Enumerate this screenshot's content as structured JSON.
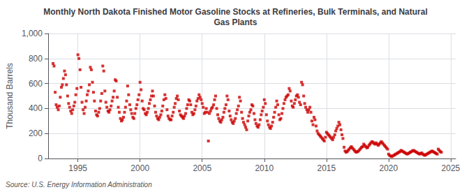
{
  "chart_data": {
    "type": "scatter",
    "title": "Monthly North Dakota Finished Motor Gasoline Stocks at Refineries, Bulk Terminals, and Natural\nGas Plants",
    "ylabel": "Thousand Barrels",
    "annotations": [
      "Source: U.S. Energy Information Administration"
    ],
    "color": "#cc0000",
    "marker": "square",
    "grid": true,
    "xlim": [
      1992.6,
      2025.4
    ],
    "xticks": [
      1995,
      2000,
      2005,
      2010,
      2015,
      2020,
      2025
    ],
    "ylim": [
      0,
      1000
    ],
    "yticks": [
      0,
      200,
      400,
      600,
      800,
      {
        "value": 1000,
        "label": "1,000"
      }
    ],
    "x": [
      1993.0,
      1993.08,
      1993.17,
      1993.25,
      1993.33,
      1993.42,
      1993.5,
      1993.58,
      1993.67,
      1993.75,
      1993.83,
      1993.92,
      1994.0,
      1994.08,
      1994.17,
      1994.25,
      1994.33,
      1994.42,
      1994.5,
      1994.58,
      1994.67,
      1994.75,
      1994.83,
      1994.92,
      1995.0,
      1995.08,
      1995.17,
      1995.25,
      1995.33,
      1995.42,
      1995.5,
      1995.58,
      1995.67,
      1995.75,
      1995.83,
      1995.92,
      1996.0,
      1996.08,
      1996.17,
      1996.25,
      1996.33,
      1996.42,
      1996.5,
      1996.58,
      1996.67,
      1996.75,
      1996.83,
      1996.92,
      1997.0,
      1997.08,
      1997.17,
      1997.25,
      1997.33,
      1997.42,
      1997.5,
      1997.58,
      1997.67,
      1997.75,
      1997.83,
      1997.92,
      1998.0,
      1998.08,
      1998.17,
      1998.25,
      1998.33,
      1998.42,
      1998.5,
      1998.58,
      1998.67,
      1998.75,
      1998.83,
      1998.92,
      1999.0,
      1999.08,
      1999.17,
      1999.25,
      1999.33,
      1999.42,
      1999.5,
      1999.58,
      1999.67,
      1999.75,
      1999.83,
      1999.92,
      2000.0,
      2000.08,
      2000.17,
      2000.25,
      2000.33,
      2000.42,
      2000.5,
      2000.58,
      2000.67,
      2000.75,
      2000.83,
      2000.92,
      2001.0,
      2001.08,
      2001.17,
      2001.25,
      2001.33,
      2001.42,
      2001.5,
      2001.58,
      2001.67,
      2001.75,
      2001.83,
      2001.92,
      2002.0,
      2002.08,
      2002.17,
      2002.25,
      2002.33,
      2002.42,
      2002.5,
      2002.58,
      2002.67,
      2002.75,
      2002.83,
      2002.92,
      2003.0,
      2003.08,
      2003.17,
      2003.25,
      2003.33,
      2003.42,
      2003.5,
      2003.58,
      2003.67,
      2003.75,
      2003.83,
      2003.92,
      2004.0,
      2004.08,
      2004.17,
      2004.25,
      2004.33,
      2004.42,
      2004.5,
      2004.58,
      2004.67,
      2004.75,
      2004.83,
      2004.92,
      2005.0,
      2005.08,
      2005.17,
      2005.25,
      2005.33,
      2005.42,
      2005.5,
      2005.58,
      2005.67,
      2005.75,
      2005.83,
      2005.92,
      2006.0,
      2006.08,
      2006.17,
      2006.25,
      2006.33,
      2006.42,
      2006.5,
      2006.58,
      2006.67,
      2006.75,
      2006.83,
      2006.92,
      2007.0,
      2007.08,
      2007.17,
      2007.25,
      2007.33,
      2007.42,
      2007.5,
      2007.58,
      2007.67,
      2007.75,
      2007.83,
      2007.92,
      2008.0,
      2008.08,
      2008.17,
      2008.25,
      2008.33,
      2008.42,
      2008.5,
      2008.58,
      2008.67,
      2008.75,
      2008.83,
      2008.92,
      2009.0,
      2009.08,
      2009.17,
      2009.25,
      2009.33,
      2009.42,
      2009.5,
      2009.58,
      2009.67,
      2009.75,
      2009.83,
      2009.92,
      2010.0,
      2010.08,
      2010.17,
      2010.25,
      2010.33,
      2010.42,
      2010.5,
      2010.58,
      2010.67,
      2010.75,
      2010.83,
      2010.92,
      2011.0,
      2011.08,
      2011.17,
      2011.25,
      2011.33,
      2011.42,
      2011.5,
      2011.58,
      2011.67,
      2011.75,
      2011.83,
      2011.92,
      2012.0,
      2012.08,
      2012.17,
      2012.25,
      2012.33,
      2012.42,
      2012.5,
      2012.58,
      2012.67,
      2012.75,
      2012.83,
      2012.92,
      2013.0,
      2013.08,
      2013.17,
      2013.25,
      2013.33,
      2013.42,
      2013.5,
      2013.58,
      2013.67,
      2013.75,
      2013.83,
      2013.92,
      2014.0,
      2014.08,
      2014.17,
      2014.25,
      2014.33,
      2014.42,
      2014.5,
      2014.58,
      2014.67,
      2014.75,
      2014.83,
      2014.92,
      2015.0,
      2015.08,
      2015.17,
      2015.25,
      2015.33,
      2015.42,
      2015.5,
      2015.58,
      2015.67,
      2015.75,
      2015.83,
      2015.92,
      2016.0,
      2016.08,
      2016.17,
      2016.25,
      2016.33,
      2016.42,
      2016.5,
      2016.58,
      2016.67,
      2016.75,
      2016.83,
      2016.92,
      2017.0,
      2017.08,
      2017.17,
      2017.25,
      2017.33,
      2017.42,
      2017.5,
      2017.58,
      2017.67,
      2017.75,
      2017.83,
      2017.92,
      2018.0,
      2018.08,
      2018.17,
      2018.25,
      2018.33,
      2018.42,
      2018.5,
      2018.58,
      2018.67,
      2018.75,
      2018.83,
      2018.92,
      2019.0,
      2019.08,
      2019.17,
      2019.25,
      2019.33,
      2019.42,
      2019.5,
      2019.58,
      2019.67,
      2019.75,
      2019.83,
      2019.92,
      2020.0,
      2020.08,
      2020.17,
      2020.25,
      2020.33,
      2020.42,
      2020.5,
      2020.58,
      2020.67,
      2020.75,
      2020.83,
      2020.92,
      2021.0,
      2021.08,
      2021.17,
      2021.25,
      2021.33,
      2021.42,
      2021.5,
      2021.58,
      2021.67,
      2021.75,
      2021.83,
      2021.92,
      2022.0,
      2022.08,
      2022.17,
      2022.25,
      2022.33,
      2022.42,
      2022.5,
      2022.58,
      2022.67,
      2022.75,
      2022.83,
      2022.92,
      2023.0,
      2023.08,
      2023.17,
      2023.25,
      2023.33,
      2023.42,
      2023.5,
      2023.58,
      2023.67,
      2023.75,
      2023.83,
      2023.92,
      2024.0,
      2024.08,
      2024.17,
      2024.25
    ],
    "values": [
      760,
      740,
      530,
      430,
      410,
      390,
      420,
      490,
      570,
      590,
      640,
      700,
      670,
      590,
      500,
      440,
      410,
      380,
      360,
      390,
      420,
      450,
      510,
      560,
      830,
      800,
      710,
      570,
      450,
      390,
      360,
      410,
      460,
      510,
      540,
      590,
      730,
      710,
      610,
      530,
      460,
      380,
      350,
      340,
      370,
      400,
      460,
      520,
      740,
      700,
      540,
      450,
      410,
      380,
      370,
      390,
      420,
      460,
      490,
      540,
      630,
      620,
      490,
      410,
      370,
      320,
      300,
      310,
      330,
      370,
      410,
      460,
      580,
      510,
      430,
      390,
      360,
      330,
      320,
      360,
      400,
      430,
      470,
      510,
      610,
      550,
      460,
      400,
      390,
      360,
      350,
      370,
      400,
      440,
      470,
      500,
      540,
      500,
      420,
      370,
      340,
      320,
      310,
      330,
      350,
      380,
      420,
      470,
      510,
      480,
      390,
      340,
      320,
      310,
      310,
      340,
      370,
      410,
      440,
      480,
      500,
      470,
      380,
      350,
      340,
      330,
      320,
      340,
      360,
      400,
      430,
      470,
      460,
      430,
      370,
      350,
      360,
      390,
      420,
      460,
      480,
      510,
      490,
      470,
      440,
      410,
      360,
      370,
      400,
      370,
      140,
      360,
      380,
      400,
      410,
      430,
      470,
      500,
      400,
      350,
      320,
      300,
      290,
      310,
      330,
      370,
      400,
      430,
      500,
      470,
      380,
      340,
      310,
      290,
      280,
      300,
      320,
      360,
      390,
      420,
      490,
      460,
      370,
      320,
      290,
      270,
      250,
      230,
      300,
      340,
      370,
      390,
      430,
      420,
      360,
      310,
      280,
      260,
      250,
      270,
      310,
      350,
      380,
      410,
      470,
      440,
      350,
      300,
      270,
      250,
      240,
      260,
      290,
      330,
      370,
      410,
      460,
      430,
      350,
      310,
      320,
      360,
      400,
      440,
      470,
      490,
      500,
      510,
      560,
      540,
      460,
      420,
      410,
      440,
      470,
      500,
      510,
      490,
      450,
      430,
      610,
      590,
      500,
      440,
      410,
      390,
      370,
      390,
      410,
      370,
      300,
      270,
      330,
      310,
      260,
      220,
      200,
      190,
      180,
      170,
      160,
      150,
      140,
      170,
      210,
      200,
      190,
      180,
      170,
      160,
      150,
      170,
      190,
      220,
      240,
      260,
      290,
      270,
      230,
      190,
      160,
      90,
      60,
      50,
      55,
      65,
      75,
      85,
      95,
      85,
      75,
      65,
      55,
      50,
      55,
      60,
      70,
      80,
      90,
      95,
      115,
      105,
      95,
      85,
      90,
      105,
      115,
      125,
      135,
      130,
      120,
      115,
      125,
      115,
      105,
      115,
      125,
      135,
      125,
      115,
      105,
      95,
      85,
      75,
      35,
      25,
      20,
      15,
      20,
      25,
      30,
      35,
      40,
      45,
      50,
      55,
      65,
      60,
      55,
      50,
      45,
      40,
      35,
      40,
      45,
      50,
      55,
      60,
      65,
      60,
      55,
      50,
      45,
      40,
      35,
      40,
      45,
      35,
      30,
      25,
      30,
      35,
      40,
      45,
      50,
      55,
      60,
      55,
      50,
      45,
      40,
      35,
      75,
      65,
      55,
      50
    ]
  }
}
